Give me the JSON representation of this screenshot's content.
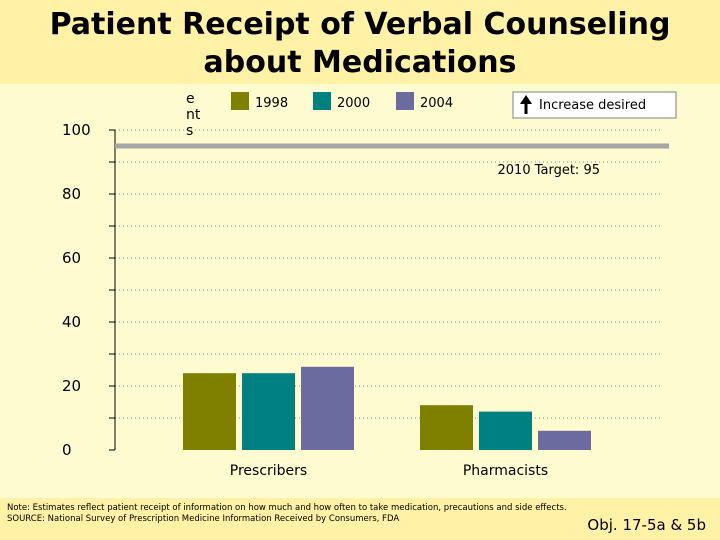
{
  "title_line1": "Patient Receipt of Verbal Counseling",
  "title_line2": "about Medications",
  "ylabel_fragment": [
    "e",
    "nt",
    "s"
  ],
  "increase_desired": "Increase desired",
  "target_label": "2010 Target: 95",
  "footer": {
    "note": "Note: Estimates reflect patient receipt of information on how much and how often to take medication, precautions and side effects.",
    "source": "SOURCE: National Survey of Prescription Medicine Information Received by Consumers, FDA",
    "objective": "Obj. 17-5a & 5b"
  },
  "colors": {
    "1998": "#808000",
    "2000": "#008080",
    "2004": "#6b6b9f",
    "target": "#a6a6a6"
  },
  "chart_data": {
    "type": "bar",
    "title": "Patient Receipt of Verbal Counseling about Medications",
    "categories": [
      "Prescribers",
      "Pharmacists"
    ],
    "series": [
      {
        "name": "1998",
        "values": [
          24,
          14
        ]
      },
      {
        "name": "2000",
        "values": [
          24,
          12
        ]
      },
      {
        "name": "2004",
        "values": [
          26,
          6
        ]
      }
    ],
    "target": {
      "value": 95,
      "label": "2010 Target: 95"
    },
    "ylim": [
      0,
      100
    ],
    "yticks": [
      0,
      20,
      40,
      60,
      80,
      100
    ],
    "grid": true,
    "legend": "top"
  }
}
